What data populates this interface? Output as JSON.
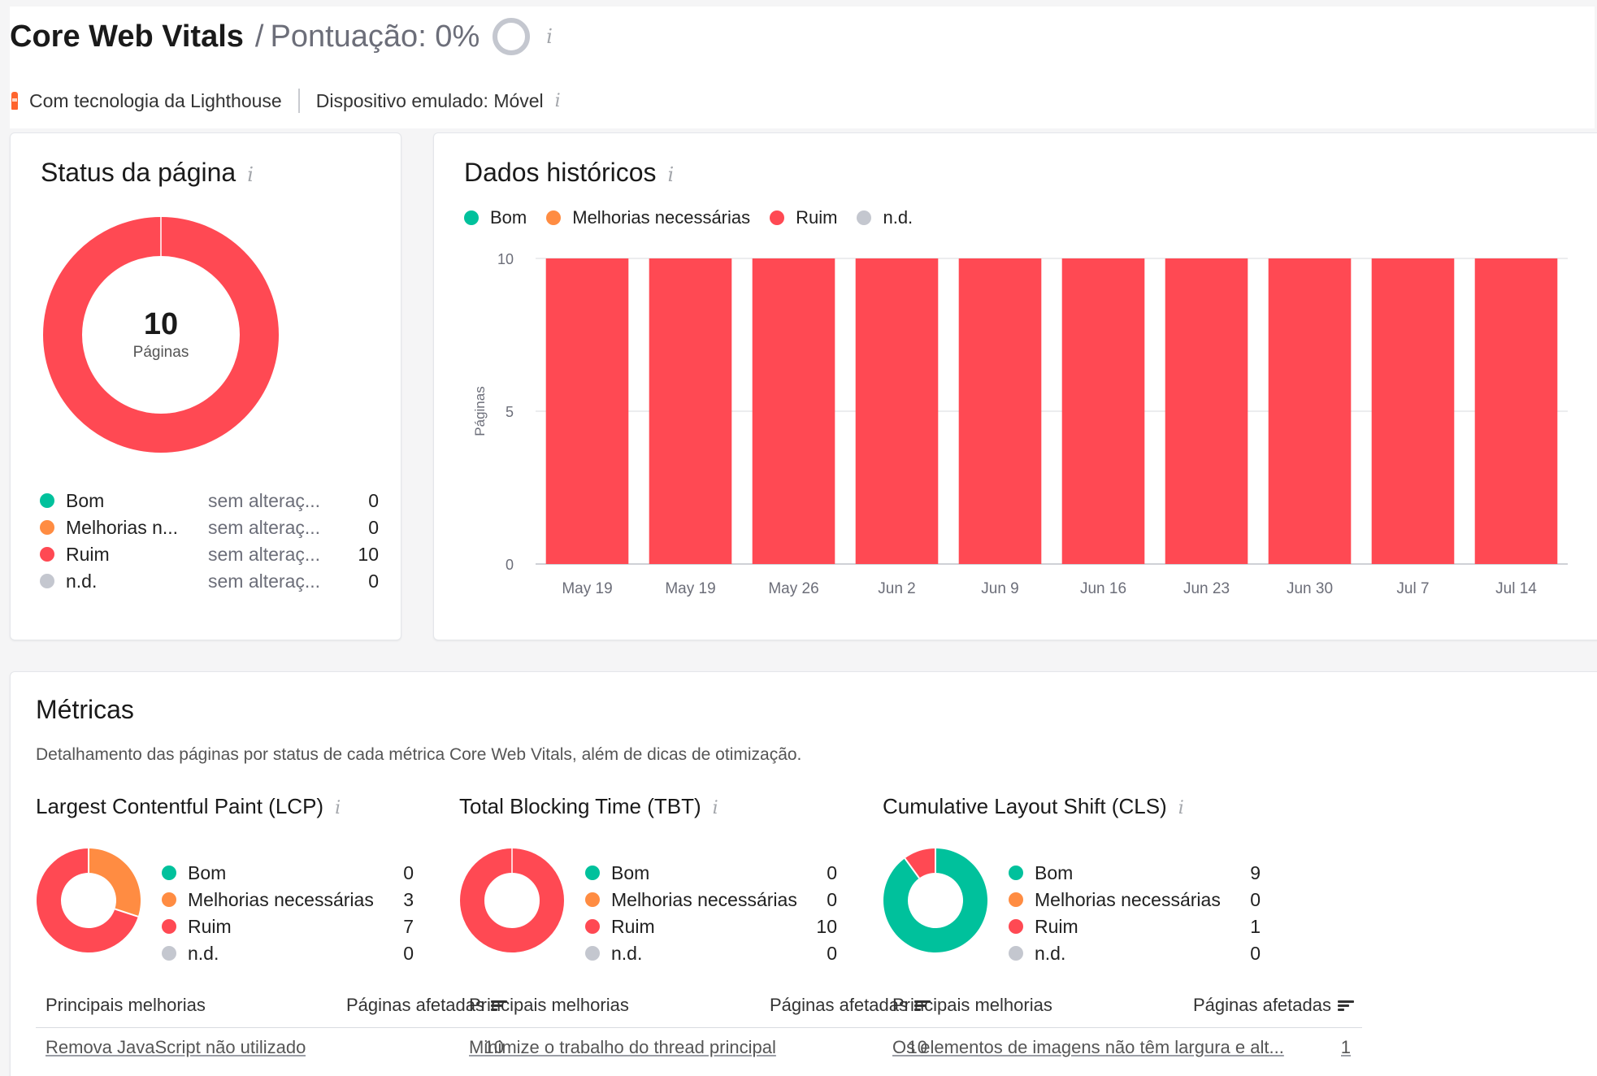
{
  "header": {
    "title": "Core Web Vitals",
    "separator": "/",
    "score_label": "Pontuação: 0%",
    "powered_by": "Com tecnologia da Lighthouse",
    "device": "Dispositivo emulado: Móvel"
  },
  "colors": {
    "good": "#00c19c",
    "needs_improvement": "#ff8c42",
    "poor": "#ff4953",
    "na": "#c4c7cf"
  },
  "status_card": {
    "title": "Status da página",
    "total": "10",
    "total_label": "Páginas",
    "rows": [
      {
        "label": "Bom",
        "change": "sem alteraç...",
        "count": "0",
        "value": 0,
        "color": "#00c19c"
      },
      {
        "label": "Melhorias n...",
        "change": "sem alteraç...",
        "count": "0",
        "value": 0,
        "color": "#ff8c42"
      },
      {
        "label": "Ruim",
        "change": "sem alteraç...",
        "count": "10",
        "value": 10,
        "color": "#ff4953"
      },
      {
        "label": "n.d.",
        "change": "sem alteraç...",
        "count": "0",
        "value": 0,
        "color": "#c4c7cf"
      }
    ]
  },
  "history_card": {
    "title": "Dados históricos",
    "legend": [
      {
        "label": "Bom",
        "color": "#00c19c"
      },
      {
        "label": "Melhorias necessárias",
        "color": "#ff8c42"
      },
      {
        "label": "Ruim",
        "color": "#ff4953"
      },
      {
        "label": "n.d.",
        "color": "#c4c7cf"
      }
    ]
  },
  "chart_data": {
    "type": "bar",
    "title": "Dados históricos",
    "ylabel": "Páginas",
    "xlabel": "",
    "ylim": [
      0,
      10
    ],
    "yticks": [
      0,
      5,
      10
    ],
    "grid": true,
    "legend_position": "top-left",
    "categories": [
      "May 19",
      "May 19",
      "May 26",
      "Jun 2",
      "Jun 9",
      "Jun 16",
      "Jun 23",
      "Jun 30",
      "Jul 7",
      "Jul 14"
    ],
    "series": [
      {
        "name": "Bom",
        "color": "#00c19c",
        "values": [
          0,
          0,
          0,
          0,
          0,
          0,
          0,
          0,
          0,
          0
        ]
      },
      {
        "name": "Melhorias necessárias",
        "color": "#ff8c42",
        "values": [
          0,
          0,
          0,
          0,
          0,
          0,
          0,
          0,
          0,
          0
        ]
      },
      {
        "name": "Ruim",
        "color": "#ff4953",
        "values": [
          10,
          10,
          10,
          10,
          10,
          10,
          10,
          10,
          10,
          10
        ]
      },
      {
        "name": "n.d.",
        "color": "#c4c7cf",
        "values": [
          0,
          0,
          0,
          0,
          0,
          0,
          0,
          0,
          0,
          0
        ]
      }
    ]
  },
  "metrics": {
    "title": "Métricas",
    "description": "Detalhamento das páginas por status de cada métrica Core Web Vitals, além de dicas de otimização.",
    "improve_header": "Principais melhorias",
    "affected_header": "Páginas afetadas",
    "items": [
      {
        "title": "Largest Contentful Paint (LCP)",
        "rows": [
          {
            "label": "Bom",
            "count": "0",
            "value": 0,
            "color": "#00c19c"
          },
          {
            "label": "Melhorias necessárias",
            "count": "3",
            "value": 3,
            "color": "#ff8c42"
          },
          {
            "label": "Ruim",
            "count": "7",
            "value": 7,
            "color": "#ff4953"
          },
          {
            "label": "n.d.",
            "count": "0",
            "value": 0,
            "color": "#c4c7cf"
          }
        ],
        "improvement": "Remova JavaScript não utilizado",
        "improvement_count": "10"
      },
      {
        "title": "Total Blocking Time (TBT)",
        "rows": [
          {
            "label": "Bom",
            "count": "0",
            "value": 0,
            "color": "#00c19c"
          },
          {
            "label": "Melhorias necessárias",
            "count": "0",
            "value": 0,
            "color": "#ff8c42"
          },
          {
            "label": "Ruim",
            "count": "10",
            "value": 10,
            "color": "#ff4953"
          },
          {
            "label": "n.d.",
            "count": "0",
            "value": 0,
            "color": "#c4c7cf"
          }
        ],
        "improvement": "Minimize o trabalho do thread principal",
        "improvement_count": "10"
      },
      {
        "title": "Cumulative Layout Shift (CLS)",
        "rows": [
          {
            "label": "Bom",
            "count": "9",
            "value": 9,
            "color": "#00c19c"
          },
          {
            "label": "Melhorias necessárias",
            "count": "0",
            "value": 0,
            "color": "#ff8c42"
          },
          {
            "label": "Ruim",
            "count": "1",
            "value": 1,
            "color": "#ff4953"
          },
          {
            "label": "n.d.",
            "count": "0",
            "value": 0,
            "color": "#c4c7cf"
          }
        ],
        "improvement": "Os elementos de imagens não têm largura e alt...",
        "improvement_count": "1"
      }
    ]
  }
}
